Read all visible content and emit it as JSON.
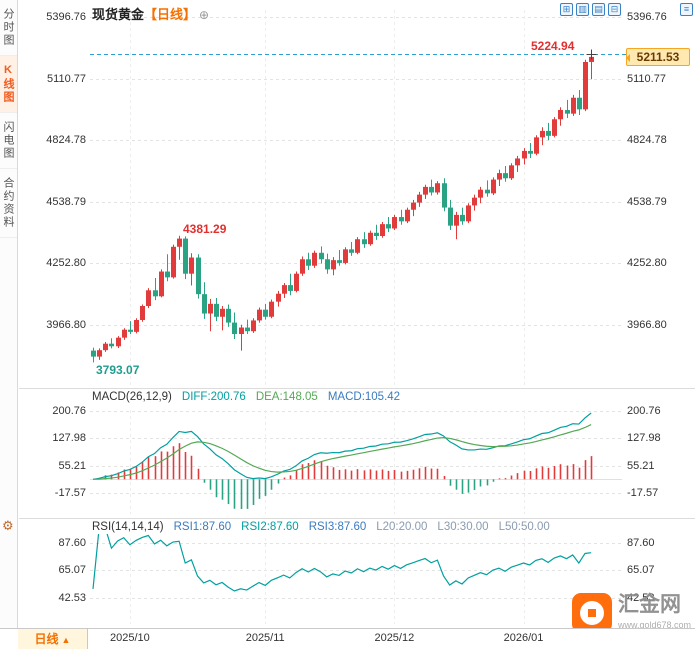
{
  "header": {
    "symbol": "现货黄金",
    "period": "【日线】",
    "add_icon": "⊕",
    "toolbar_icons": [
      {
        "name": "layout-grid-icon",
        "glyph": "⊞"
      },
      {
        "name": "kline-style-icon",
        "glyph": "▥"
      },
      {
        "name": "indicator-panel-icon",
        "glyph": "▤"
      },
      {
        "name": "chart-settings-icon",
        "glyph": "⊟"
      }
    ],
    "corner_icon": {
      "name": "menu-icon",
      "glyph": "≡"
    }
  },
  "sidebar": {
    "items": [
      {
        "id": "time-sharing",
        "label": "分时图",
        "active": false
      },
      {
        "id": "kline",
        "label": "K线图",
        "active": true
      },
      {
        "id": "lightning",
        "label": "闪电图",
        "active": false
      },
      {
        "id": "contract-info",
        "label": "合约资料",
        "active": false
      }
    ]
  },
  "main_chart": {
    "annotations": {
      "high": "5224.94",
      "oct_peak": "4381.29",
      "start_low": "3793.07",
      "last_price": "5211.53"
    }
  },
  "macd_panel": {
    "segments": [
      {
        "text": "MACD(26,12,9)",
        "color": "#333333"
      },
      {
        "text": "DIFF:200.76",
        "color": "#00a0a0"
      },
      {
        "text": "DEA:148.05",
        "color": "#55a855"
      },
      {
        "text": "MACD:105.42",
        "color": "#3a7bbf"
      }
    ]
  },
  "rsi_panel": {
    "segments": [
      {
        "text": "RSI(14,14,14)",
        "color": "#333333"
      },
      {
        "text": "RSI1:87.60",
        "color": "#3a7bbf"
      },
      {
        "text": "RSI2:87.60",
        "color": "#00a0a0"
      },
      {
        "text": "RSI3:87.60",
        "color": "#3a7bbf"
      },
      {
        "text": "L20:20.00",
        "color": "#8a9bb0"
      },
      {
        "text": "L30:30.00",
        "color": "#8a9bb0"
      },
      {
        "text": "L50:50.00",
        "color": "#8a9bb0"
      }
    ]
  },
  "bottom": {
    "tab_label": "日线",
    "tab_arrow": "▲"
  },
  "watermark": {
    "name": "汇金网",
    "url": "www.gold678.com"
  },
  "chart_data": {
    "type": "candlestick",
    "title": "现货黄金",
    "period": "日线",
    "x_axis_labels": [
      "2025/10",
      "2025/11",
      "2025/12",
      "2026/01"
    ],
    "month_start_indices": [
      6,
      28,
      49,
      70
    ],
    "y_axis": {
      "main": [
        "5396.76",
        "5110.77",
        "4824.78",
        "4538.79",
        "4252.80",
        "3966.80"
      ],
      "macd": [
        "200.76",
        "127.98",
        "55.21",
        "-17.57"
      ],
      "rsi": [
        "87.60",
        "65.07",
        "42.53"
      ]
    },
    "overlays": {
      "high_line": 5224.94,
      "last_price": 5211.53,
      "annotated_peak": 4381.29,
      "annotated_low": 3793.07
    },
    "indicators": {
      "macd": {
        "params": [
          26,
          12,
          9
        ],
        "diff": 200.76,
        "dea": 148.05,
        "macd": 105.42
      },
      "rsi": {
        "params": [
          14,
          14,
          14
        ],
        "rsi1": 87.6,
        "rsi2": 87.6,
        "rsi3": 87.6,
        "l20": 20.0,
        "l30": 30.0,
        "l50": 50.0
      }
    },
    "colors": {
      "up": "#e23b3b",
      "down": "#2aa384",
      "grid": "#e3e3e3",
      "high_line": "#2e9fd4",
      "diff_line": "#00a0a0",
      "dea_line": "#55a855",
      "rsi_line": "#00a0a0"
    },
    "candles": [
      [
        3848,
        3862,
        3793.07,
        3820
      ],
      [
        3820,
        3858,
        3805,
        3850
      ],
      [
        3850,
        3888,
        3842,
        3880
      ],
      [
        3880,
        3905,
        3858,
        3868
      ],
      [
        3868,
        3915,
        3860,
        3908
      ],
      [
        3908,
        3952,
        3898,
        3945
      ],
      [
        3945,
        3985,
        3925,
        3935
      ],
      [
        3935,
        3998,
        3928,
        3990
      ],
      [
        3990,
        4062,
        3982,
        4055
      ],
      [
        4055,
        4138,
        4045,
        4128
      ],
      [
        4128,
        4185,
        4082,
        4100
      ],
      [
        4100,
        4225,
        4095,
        4215
      ],
      [
        4215,
        4295,
        4170,
        4188
      ],
      [
        4188,
        4340,
        4182,
        4330
      ],
      [
        4330,
        4381.29,
        4270,
        4368
      ],
      [
        4368,
        4378,
        4180,
        4205
      ],
      [
        4205,
        4300,
        4150,
        4280
      ],
      [
        4280,
        4295,
        4090,
        4110
      ],
      [
        4110,
        4165,
        3995,
        4020
      ],
      [
        4020,
        4088,
        3938,
        4065
      ],
      [
        4065,
        4092,
        3985,
        4005
      ],
      [
        4005,
        4055,
        3942,
        4042
      ],
      [
        4042,
        4062,
        3958,
        3978
      ],
      [
        3978,
        4025,
        3902,
        3925
      ],
      [
        3925,
        3968,
        3848,
        3955
      ],
      [
        3955,
        3992,
        3925,
        3938
      ],
      [
        3938,
        3998,
        3930,
        3988
      ],
      [
        3988,
        4048,
        3978,
        4038
      ],
      [
        4038,
        4065,
        3992,
        4005
      ],
      [
        4005,
        4085,
        3998,
        4075
      ],
      [
        4075,
        4125,
        4052,
        4112
      ],
      [
        4112,
        4162,
        4092,
        4152
      ],
      [
        4152,
        4205,
        4105,
        4125
      ],
      [
        4125,
        4215,
        4118,
        4205
      ],
      [
        4205,
        4285,
        4195,
        4272
      ],
      [
        4272,
        4302,
        4222,
        4242
      ],
      [
        4242,
        4312,
        4232,
        4302
      ],
      [
        4302,
        4332,
        4252,
        4272
      ],
      [
        4272,
        4298,
        4205,
        4225
      ],
      [
        4225,
        4282,
        4198,
        4268
      ],
      [
        4268,
        4315,
        4242,
        4255
      ],
      [
        4255,
        4328,
        4248,
        4318
      ],
      [
        4318,
        4352,
        4288,
        4302
      ],
      [
        4302,
        4375,
        4295,
        4365
      ],
      [
        4365,
        4398,
        4325,
        4342
      ],
      [
        4342,
        4405,
        4335,
        4395
      ],
      [
        4395,
        4432,
        4362,
        4380
      ],
      [
        4380,
        4445,
        4372,
        4435
      ],
      [
        4435,
        4468,
        4398,
        4415
      ],
      [
        4415,
        4478,
        4408,
        4468
      ],
      [
        4468,
        4502,
        4432,
        4448
      ],
      [
        4448,
        4512,
        4440,
        4502
      ],
      [
        4502,
        4548,
        4472,
        4535
      ],
      [
        4535,
        4585,
        4515,
        4572
      ],
      [
        4572,
        4618,
        4552,
        4608
      ],
      [
        4608,
        4642,
        4568,
        4582
      ],
      [
        4582,
        4635,
        4572,
        4625
      ],
      [
        4625,
        4648,
        4495,
        4512
      ],
      [
        4512,
        4548,
        4408,
        4428
      ],
      [
        4428,
        4492,
        4365,
        4478
      ],
      [
        4478,
        4512,
        4432,
        4448
      ],
      [
        4448,
        4532,
        4440,
        4522
      ],
      [
        4522,
        4572,
        4498,
        4558
      ],
      [
        4558,
        4608,
        4532,
        4595
      ],
      [
        4595,
        4638,
        4562,
        4578
      ],
      [
        4578,
        4652,
        4570,
        4642
      ],
      [
        4642,
        4688,
        4612,
        4672
      ],
      [
        4672,
        4705,
        4632,
        4648
      ],
      [
        4648,
        4718,
        4640,
        4708
      ],
      [
        4708,
        4752,
        4678,
        4740
      ],
      [
        4740,
        4788,
        4712,
        4775
      ],
      [
        4775,
        4812,
        4742,
        4762
      ],
      [
        4762,
        4848,
        4755,
        4838
      ],
      [
        4838,
        4885,
        4802,
        4868
      ],
      [
        4868,
        4905,
        4825,
        4845
      ],
      [
        4845,
        4932,
        4838,
        4922
      ],
      [
        4922,
        4978,
        4892,
        4965
      ],
      [
        4965,
        5012,
        4928,
        4948
      ],
      [
        4948,
        5035,
        4938,
        5022
      ],
      [
        5022,
        5058,
        4942,
        4968
      ],
      [
        4968,
        5198,
        4960,
        5188
      ],
      [
        5188,
        5224.94,
        5108,
        5211.53
      ]
    ]
  }
}
